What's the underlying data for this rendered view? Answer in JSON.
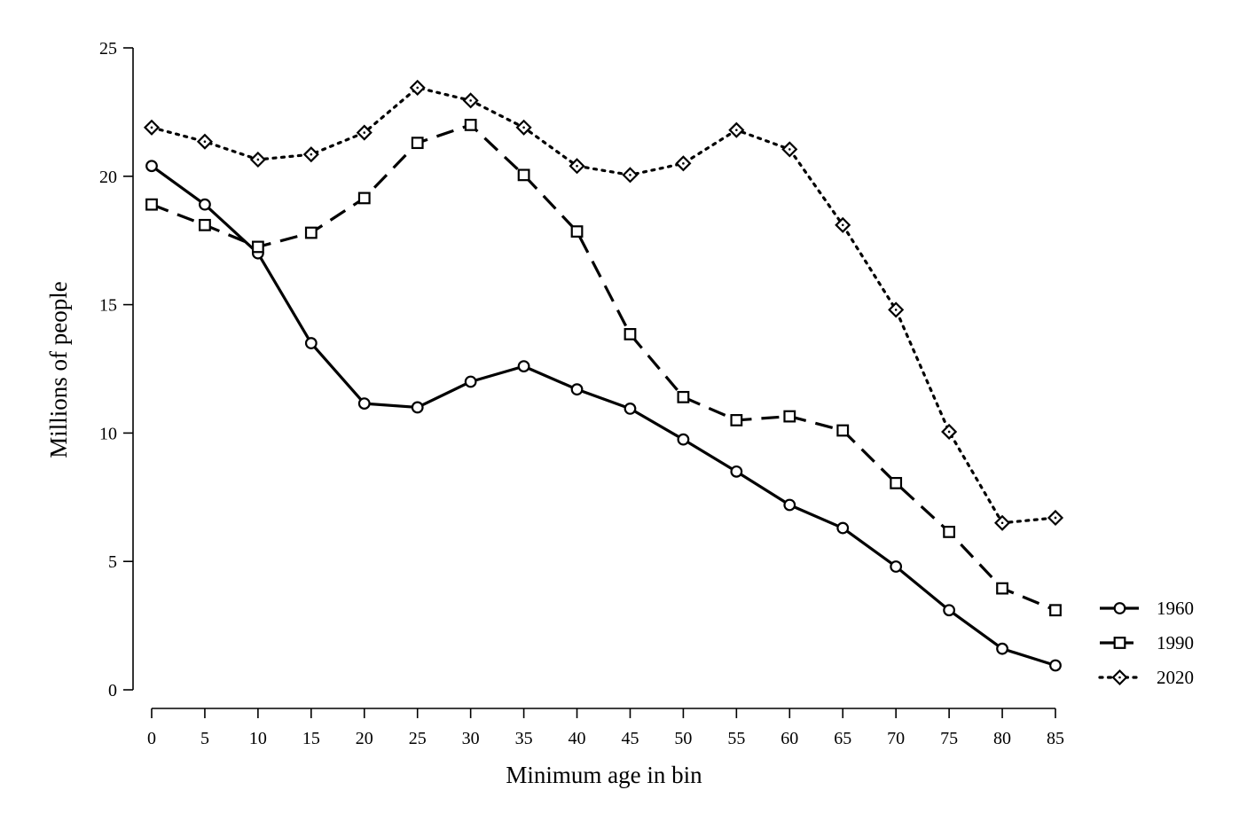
{
  "chart_data": {
    "type": "line",
    "title": "",
    "xlabel": "Minimum age in bin",
    "ylabel": "Millions of people",
    "x": [
      0,
      5,
      10,
      15,
      20,
      25,
      30,
      35,
      40,
      45,
      50,
      55,
      60,
      65,
      70,
      75,
      80,
      85
    ],
    "xticks": [
      "0",
      "5",
      "10",
      "15",
      "20",
      "25",
      "30",
      "35",
      "40",
      "45",
      "50",
      "55",
      "60",
      "65",
      "70",
      "75",
      "80",
      "85"
    ],
    "yticks": [
      "0",
      "5",
      "10",
      "15",
      "20",
      "25"
    ],
    "xlim": [
      0,
      85
    ],
    "ylim": [
      0,
      25
    ],
    "grid": false,
    "legend_position": "bottom-right",
    "series": [
      {
        "name": "1960",
        "marker": "circle",
        "line_style": "solid",
        "color": "#000000",
        "values": [
          20.4,
          18.9,
          17.0,
          13.5,
          11.15,
          11.0,
          12.0,
          12.6,
          11.7,
          10.95,
          9.75,
          8.5,
          7.2,
          6.3,
          4.8,
          3.1,
          1.6,
          0.95
        ]
      },
      {
        "name": "1990",
        "marker": "square",
        "line_style": "dashed",
        "color": "#000000",
        "values": [
          18.9,
          18.1,
          17.25,
          17.8,
          19.15,
          21.3,
          22.0,
          20.05,
          17.85,
          13.85,
          11.4,
          10.5,
          10.65,
          10.1,
          8.05,
          6.15,
          3.95,
          3.1
        ]
      },
      {
        "name": "2020",
        "marker": "diamond",
        "line_style": "dotted",
        "color": "#000000",
        "values": [
          21.9,
          21.35,
          20.65,
          20.85,
          21.7,
          23.45,
          22.95,
          21.9,
          20.4,
          20.05,
          20.5,
          21.8,
          21.05,
          18.1,
          14.8,
          10.05,
          6.5,
          6.7
        ]
      }
    ]
  }
}
